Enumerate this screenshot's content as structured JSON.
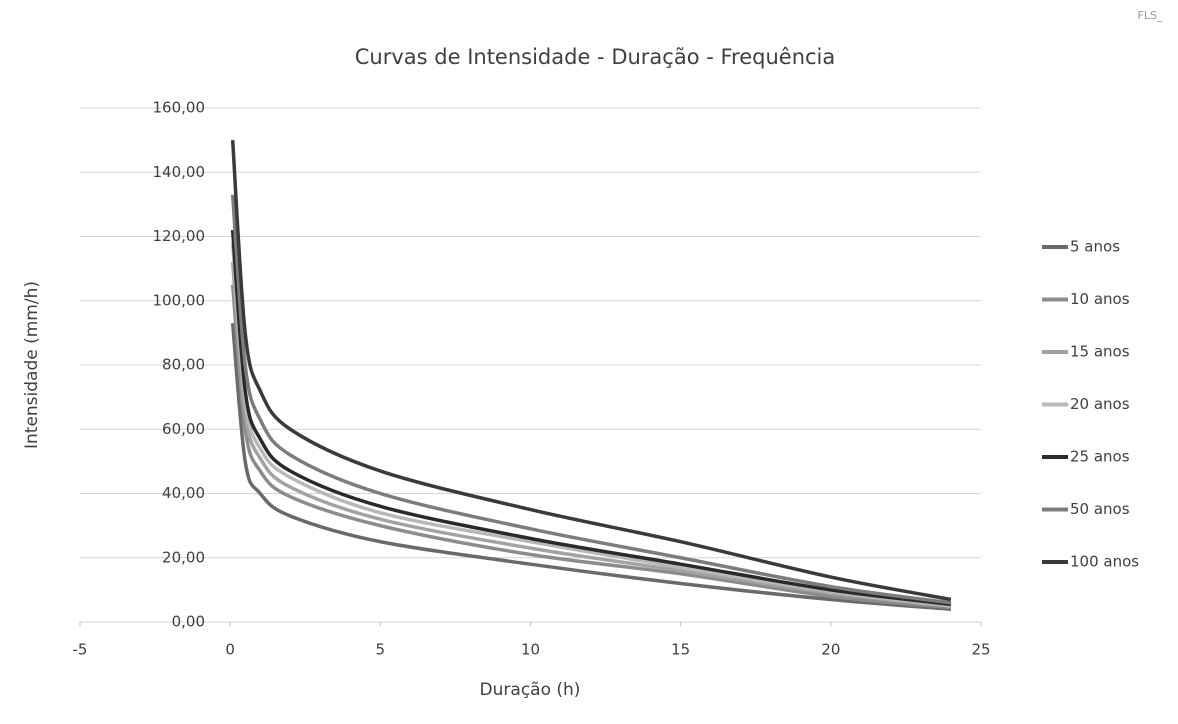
{
  "stamp": "FLS_",
  "chart_data": {
    "type": "line",
    "title": "Curvas de Intensidade - Duração - Frequência",
    "x_label": "Duração (h)",
    "y_label": "Intensidade  (mm/h)",
    "x": [
      0.083,
      0.5,
      1,
      2,
      5,
      10,
      15,
      20,
      24
    ],
    "series": [
      {
        "name": "5 anos",
        "color": "#6a6a6a",
        "values": [
          93,
          50,
          40,
          33,
          25,
          18,
          12,
          7,
          4
        ]
      },
      {
        "name": "10 anos",
        "color": "#8c8c8c",
        "values": [
          105,
          60,
          47,
          39,
          30,
          21,
          15,
          8,
          4.5
        ]
      },
      {
        "name": "15 anos",
        "color": "#a3a3a3",
        "values": [
          112,
          65,
          51,
          42,
          32,
          23,
          16,
          9,
          5
        ]
      },
      {
        "name": "20 anos",
        "color": "#b8b8b8",
        "values": [
          118,
          69,
          54,
          45,
          34,
          25,
          17,
          9.5,
          5
        ]
      },
      {
        "name": "25 anos",
        "color": "#2a2a2a",
        "values": [
          122,
          72,
          57,
          47,
          36,
          26,
          18,
          10,
          5.5
        ]
      },
      {
        "name": "50 anos",
        "color": "#7c7c7c",
        "values": [
          133,
          80,
          63,
          52,
          40,
          29,
          20,
          11,
          6
        ]
      },
      {
        "name": "100 anos",
        "color": "#3a3a3a",
        "values": [
          150,
          90,
          72,
          60,
          47,
          35,
          25,
          14,
          7
        ]
      }
    ],
    "xlim": [
      -5,
      25
    ],
    "xticks": [
      -5,
      0,
      5,
      10,
      15,
      20,
      25
    ],
    "ylim": [
      0,
      160
    ],
    "yticks": [
      {
        "value": 0,
        "label": "0,00"
      },
      {
        "value": 20,
        "label": "20,00"
      },
      {
        "value": 40,
        "label": "40,00"
      },
      {
        "value": 60,
        "label": "60,00"
      },
      {
        "value": 80,
        "label": "80,00"
      },
      {
        "value": 100,
        "label": "100,00"
      },
      {
        "value": 120,
        "label": "120,00"
      },
      {
        "value": 140,
        "label": "140,00"
      },
      {
        "value": 160,
        "label": "160,00"
      }
    ],
    "grid": true,
    "legend": "right"
  }
}
